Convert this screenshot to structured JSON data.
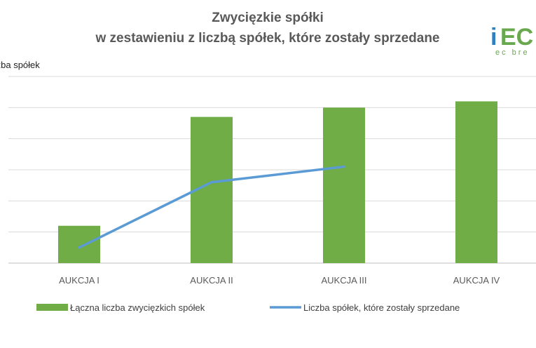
{
  "chart_data": {
    "type": "bar",
    "title": [
      "Zwycięzkie spółki",
      "w zestawieniu z liczbą spółek, które zostały sprzedane"
    ],
    "ylabel": "Liczba spółek",
    "categories": [
      "AUKCJA I",
      "AUKCJA II",
      "AUKCJA III",
      "AUKCJA IV"
    ],
    "ylim": [
      0,
      60
    ],
    "grid": true,
    "legend_position": "bottom",
    "series": [
      {
        "name": "Łączna liczba zwycięzkich spółek",
        "type": "bar",
        "color": "#70ad47",
        "values": [
          12,
          47,
          50,
          52
        ]
      },
      {
        "name": "Liczba spółek, które zostały sprzedane",
        "type": "line",
        "color": "#5b9bd5",
        "values": [
          5,
          26,
          31,
          null
        ]
      }
    ]
  },
  "logo": {
    "text_i": "i",
    "text_ec": "EC",
    "subtext": "ec bre",
    "color_i": "#2f7fc1",
    "color_ec": "#6aa84f"
  }
}
